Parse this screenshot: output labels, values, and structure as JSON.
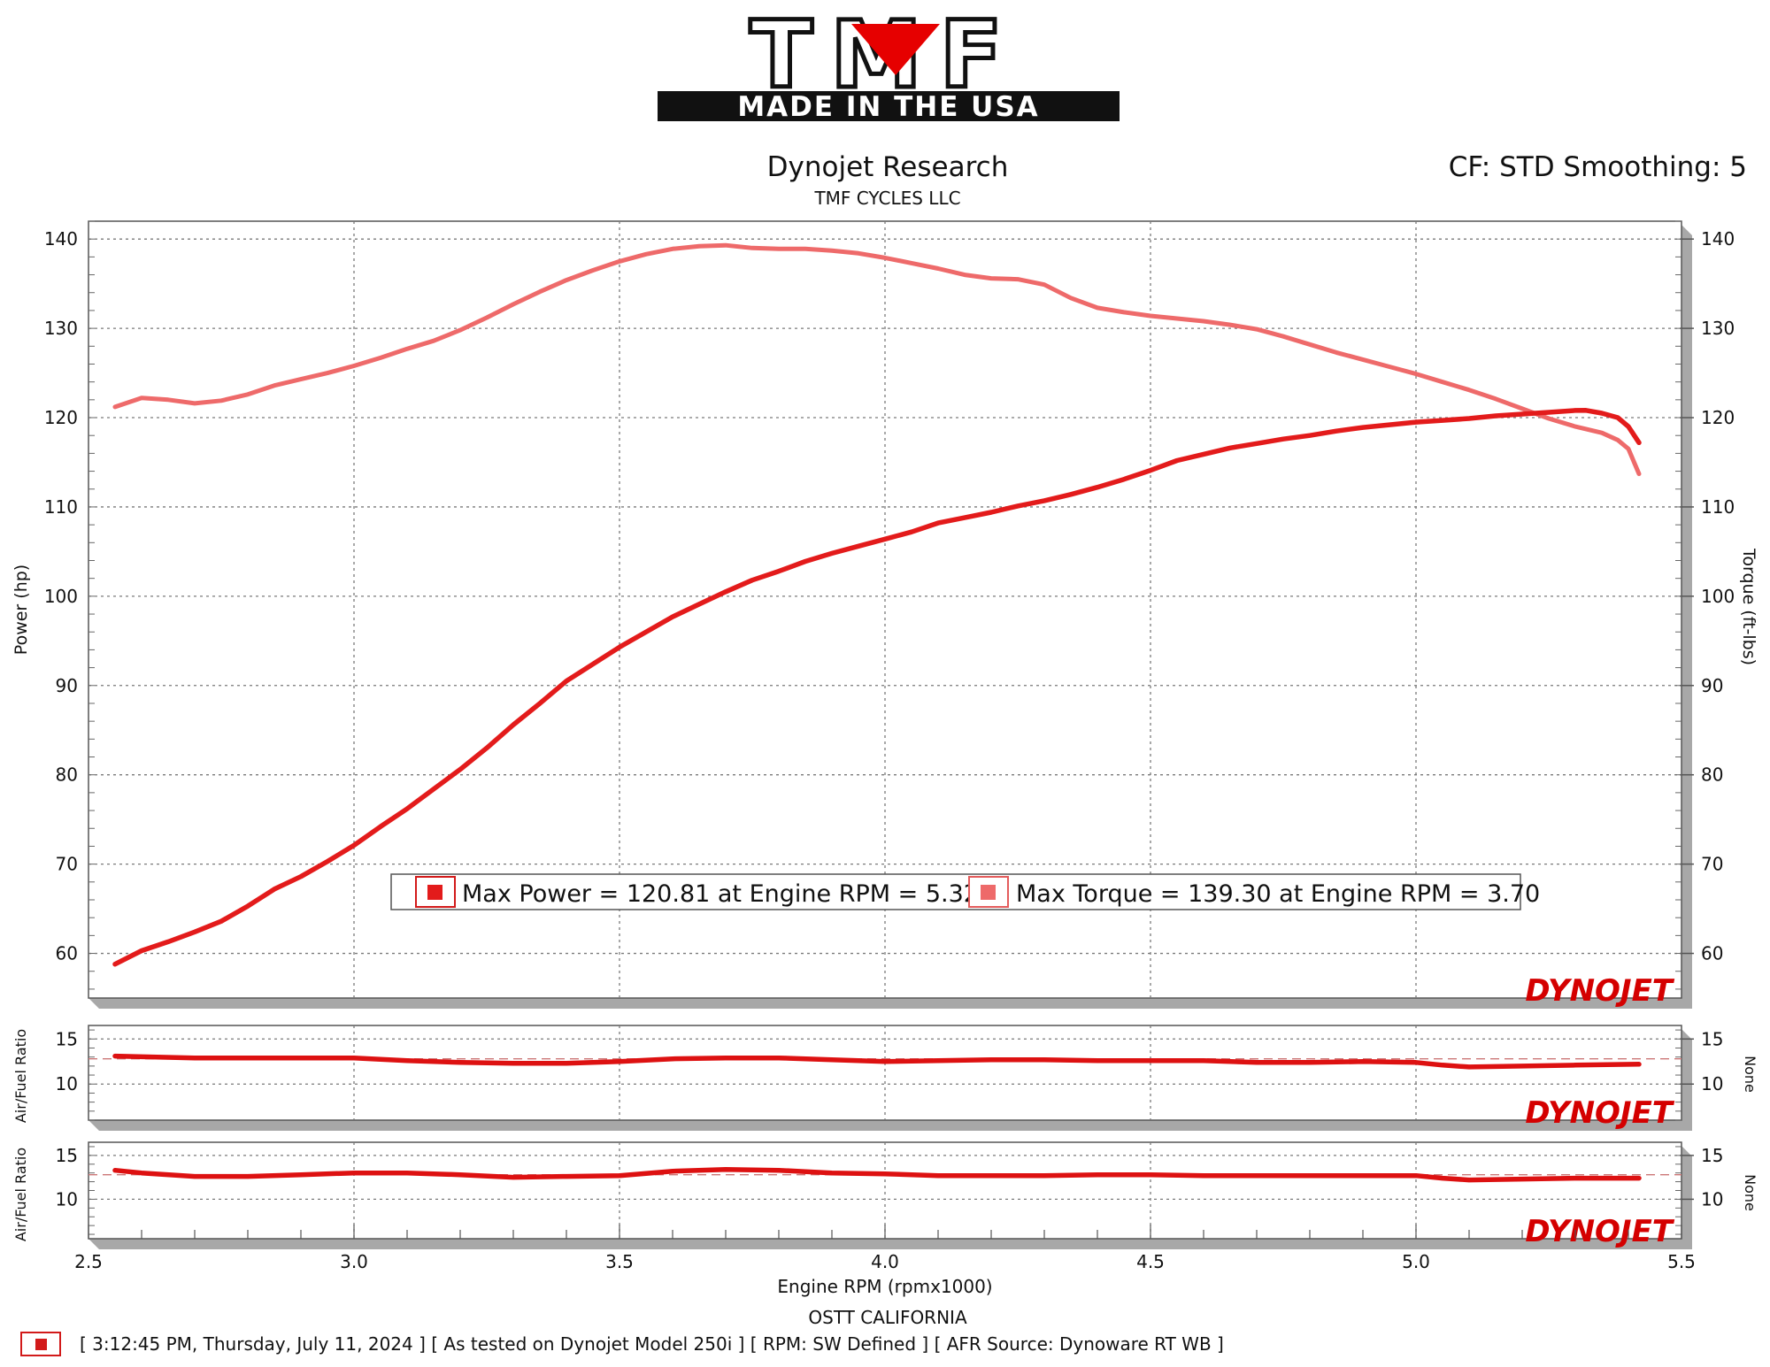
{
  "logo": {
    "text": "TMF",
    "tagline": "MADE IN THE USA"
  },
  "header": {
    "title": "Dynojet Research",
    "subtitle": "TMF CYCLES LLC",
    "cf": "CF: STD Smoothing: 5"
  },
  "brand_watermark": "DYNOJET",
  "colors": {
    "power": "#e31b1b",
    "torque": "#ee6a6a",
    "afr": "#dd1111",
    "frame": "#555555"
  },
  "legend": {
    "power_label": "Max Power = 120.81 at Engine RPM = 5.32",
    "torque_label": "Max Torque = 139.30 at Engine RPM = 3.70"
  },
  "footer": {
    "location": "OSTT CALIFORNIA",
    "info": "[ 3:12:45 PM, Thursday, July 11, 2024 ] [ As tested on Dynojet Model 250i ] [ RPM: SW Defined ] [ AFR Source: Dynoware RT WB ]"
  },
  "chart_data": [
    {
      "type": "line",
      "xlabel": "Engine RPM (rpmx1000)",
      "ylabel": "Power (hp)",
      "y2label": "Torque (ft-lbs)",
      "xlim": [
        2.5,
        5.5
      ],
      "ylim": [
        55,
        142
      ],
      "xticks": [
        "2.5",
        "3.0",
        "3.5",
        "4.0",
        "4.5",
        "5.0",
        "5.5"
      ],
      "yticks": [
        "60",
        "70",
        "80",
        "90",
        "100",
        "110",
        "120",
        "130",
        "140"
      ],
      "grid": true,
      "series": [
        {
          "name": "Power",
          "x": [
            2.55,
            2.6,
            2.65,
            2.7,
            2.75,
            2.8,
            2.85,
            2.9,
            2.95,
            3.0,
            3.05,
            3.1,
            3.15,
            3.2,
            3.25,
            3.3,
            3.35,
            3.4,
            3.45,
            3.5,
            3.55,
            3.6,
            3.65,
            3.7,
            3.75,
            3.8,
            3.85,
            3.9,
            3.95,
            4.0,
            4.05,
            4.1,
            4.15,
            4.2,
            4.25,
            4.3,
            4.35,
            4.4,
            4.45,
            4.5,
            4.55,
            4.6,
            4.65,
            4.7,
            4.75,
            4.8,
            4.85,
            4.9,
            4.95,
            5.0,
            5.05,
            5.1,
            5.15,
            5.2,
            5.25,
            5.3,
            5.32,
            5.35,
            5.38,
            5.4,
            5.42
          ],
          "values": [
            58.8,
            60.3,
            61.3,
            62.4,
            63.6,
            65.3,
            67.2,
            68.6,
            70.3,
            72.1,
            74.2,
            76.2,
            78.4,
            80.6,
            83.0,
            85.6,
            88.0,
            90.5,
            92.4,
            94.3,
            96.0,
            97.7,
            99.1,
            100.5,
            101.8,
            102.8,
            103.9,
            104.8,
            105.6,
            106.4,
            107.2,
            108.2,
            108.8,
            109.4,
            110.1,
            110.7,
            111.4,
            112.2,
            113.1,
            114.1,
            115.2,
            115.9,
            116.6,
            117.1,
            117.6,
            118.0,
            118.5,
            118.9,
            119.2,
            119.5,
            119.7,
            119.9,
            120.2,
            120.4,
            120.6,
            120.8,
            120.81,
            120.5,
            120.0,
            119.0,
            117.2
          ]
        },
        {
          "name": "Torque",
          "x": [
            2.55,
            2.6,
            2.65,
            2.7,
            2.75,
            2.8,
            2.85,
            2.9,
            2.95,
            3.0,
            3.05,
            3.1,
            3.15,
            3.2,
            3.25,
            3.3,
            3.35,
            3.4,
            3.45,
            3.5,
            3.55,
            3.6,
            3.65,
            3.7,
            3.75,
            3.8,
            3.85,
            3.9,
            3.95,
            4.0,
            4.05,
            4.1,
            4.15,
            4.2,
            4.25,
            4.3,
            4.35,
            4.4,
            4.45,
            4.5,
            4.55,
            4.6,
            4.65,
            4.7,
            4.75,
            4.8,
            4.85,
            4.9,
            4.95,
            5.0,
            5.05,
            5.1,
            5.15,
            5.2,
            5.25,
            5.3,
            5.35,
            5.38,
            5.4,
            5.42
          ],
          "values": [
            121.2,
            122.2,
            122.0,
            121.6,
            121.9,
            122.6,
            123.6,
            124.3,
            125.0,
            125.8,
            126.7,
            127.7,
            128.6,
            129.8,
            131.2,
            132.7,
            134.1,
            135.4,
            136.5,
            137.5,
            138.3,
            138.9,
            139.2,
            139.3,
            139.0,
            138.9,
            138.9,
            138.7,
            138.4,
            137.9,
            137.3,
            136.7,
            136.0,
            135.6,
            135.5,
            134.9,
            133.4,
            132.3,
            131.8,
            131.4,
            131.1,
            130.8,
            130.4,
            129.9,
            129.1,
            128.2,
            127.3,
            126.5,
            125.7,
            124.9,
            124.0,
            123.1,
            122.1,
            121.0,
            119.9,
            119.0,
            118.3,
            117.5,
            116.5,
            113.7
          ]
        }
      ]
    },
    {
      "type": "line",
      "ylabel": "Air/Fuel Ratio",
      "y2label": "None",
      "xlim": [
        2.5,
        5.5
      ],
      "ylim": [
        6,
        16.5
      ],
      "yticks": [
        "10",
        "15"
      ],
      "reference": 12.8,
      "series": [
        {
          "x": [
            2.55,
            2.7,
            2.9,
            3.0,
            3.1,
            3.2,
            3.3,
            3.4,
            3.5,
            3.6,
            3.7,
            3.8,
            3.9,
            4.0,
            4.1,
            4.2,
            4.3,
            4.4,
            4.5,
            4.6,
            4.7,
            4.8,
            4.9,
            5.0,
            5.05,
            5.1,
            5.2,
            5.3,
            5.42
          ],
          "values": [
            13.1,
            12.9,
            12.9,
            12.9,
            12.6,
            12.4,
            12.3,
            12.3,
            12.5,
            12.8,
            12.9,
            12.9,
            12.7,
            12.5,
            12.6,
            12.7,
            12.7,
            12.6,
            12.6,
            12.6,
            12.4,
            12.4,
            12.5,
            12.4,
            12.1,
            11.9,
            12.0,
            12.1,
            12.2
          ]
        }
      ]
    },
    {
      "type": "line",
      "ylabel": "Air/Fuel Ratio",
      "y2label": "None",
      "xlim": [
        2.5,
        5.5
      ],
      "ylim": [
        5.5,
        16.5
      ],
      "yticks": [
        "10",
        "15"
      ],
      "reference": 12.8,
      "series": [
        {
          "x": [
            2.55,
            2.6,
            2.7,
            2.8,
            2.9,
            3.0,
            3.1,
            3.2,
            3.3,
            3.4,
            3.5,
            3.6,
            3.7,
            3.8,
            3.9,
            4.0,
            4.1,
            4.2,
            4.3,
            4.4,
            4.5,
            4.6,
            4.7,
            4.8,
            4.9,
            5.0,
            5.05,
            5.1,
            5.2,
            5.3,
            5.42
          ],
          "values": [
            13.3,
            13.0,
            12.6,
            12.6,
            12.8,
            13.0,
            13.0,
            12.8,
            12.5,
            12.6,
            12.7,
            13.2,
            13.4,
            13.3,
            13.0,
            12.9,
            12.7,
            12.7,
            12.7,
            12.8,
            12.8,
            12.7,
            12.7,
            12.7,
            12.7,
            12.7,
            12.4,
            12.2,
            12.3,
            12.4,
            12.4
          ]
        }
      ]
    }
  ]
}
